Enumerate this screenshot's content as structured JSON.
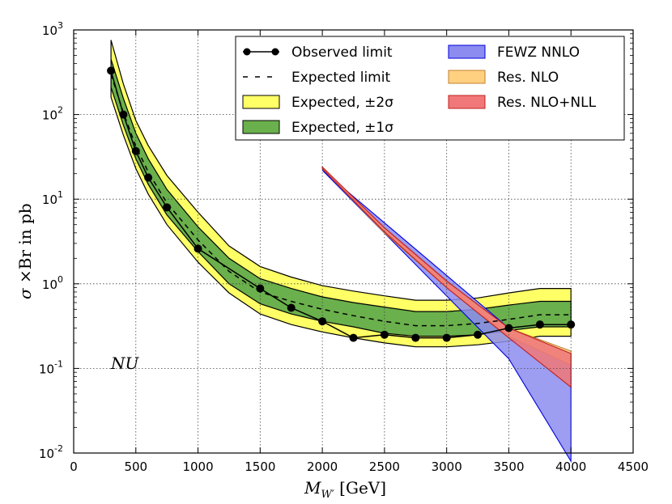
{
  "chart_data": {
    "type": "line",
    "title": "",
    "xlabel": "M_W' [GeV]",
    "ylabel": "σ ×Br in pb",
    "xlim": [
      0,
      4500
    ],
    "ylim": [
      0.01,
      1000
    ],
    "yscale": "log",
    "grid": true,
    "x_ticks": [
      "0",
      "500",
      "1000",
      "1500",
      "2000",
      "2500",
      "3000",
      "3500",
      "4000",
      "4500"
    ],
    "y_ticks": [
      {
        "base": "10",
        "exp": "-2",
        "value": 0.01
      },
      {
        "base": "10",
        "exp": "-1",
        "value": 0.1
      },
      {
        "base": "10",
        "exp": "0",
        "value": 1
      },
      {
        "base": "10",
        "exp": "1",
        "value": 10
      },
      {
        "base": "10",
        "exp": "2",
        "value": 100
      },
      {
        "base": "10",
        "exp": "3",
        "value": 1000
      }
    ],
    "annotation": "NU",
    "legend_position": "top-right",
    "observed": {
      "name": "Observed limit",
      "color": "#000000",
      "x": [
        300,
        400,
        500,
        600,
        750,
        1000,
        1500,
        1750,
        2000,
        2250,
        2500,
        2750,
        3000,
        3250,
        3500,
        3750,
        4000
      ],
      "y": [
        330,
        100,
        37,
        18,
        8,
        2.6,
        0.88,
        0.52,
        0.36,
        0.23,
        0.25,
        0.23,
        0.23,
        0.25,
        0.3,
        0.33,
        0.33
      ]
    },
    "expected": {
      "name": "Expected limit",
      "color": "#000000",
      "x": [
        300,
        400,
        500,
        600,
        750,
        1000,
        1250,
        1500,
        1750,
        2000,
        2250,
        2500,
        2750,
        3000,
        3250,
        3500,
        3750,
        4000
      ],
      "y": [
        300,
        105,
        42,
        21,
        9,
        3.3,
        1.4,
        0.8,
        0.62,
        0.5,
        0.42,
        0.36,
        0.32,
        0.32,
        0.34,
        0.38,
        0.43,
        0.43
      ]
    },
    "band_1sigma": {
      "name": "Expected, ±1σ",
      "color": "#6ab04c",
      "x": [
        300,
        400,
        500,
        600,
        750,
        1000,
        1250,
        1500,
        1750,
        2000,
        2250,
        2500,
        2750,
        3000,
        3250,
        3500,
        3750,
        4000
      ],
      "lower": [
        210,
        75,
        30,
        15,
        6.5,
        2.4,
        1.0,
        0.58,
        0.44,
        0.36,
        0.31,
        0.26,
        0.24,
        0.24,
        0.25,
        0.28,
        0.31,
        0.31
      ],
      "upper": [
        450,
        155,
        60,
        30,
        13,
        4.7,
        2.0,
        1.15,
        0.88,
        0.7,
        0.6,
        0.53,
        0.47,
        0.47,
        0.5,
        0.56,
        0.62,
        0.62
      ]
    },
    "band_2sigma": {
      "name": "Expected, ±2σ",
      "color": "#ffff66",
      "x": [
        300,
        400,
        500,
        600,
        750,
        1000,
        1250,
        1500,
        1750,
        2000,
        2250,
        2500,
        2750,
        3000,
        3250,
        3500,
        3750,
        4000
      ],
      "lower": [
        160,
        57,
        23,
        11.5,
        5,
        1.8,
        0.78,
        0.44,
        0.33,
        0.27,
        0.23,
        0.2,
        0.18,
        0.18,
        0.19,
        0.21,
        0.24,
        0.24
      ],
      "upper": [
        760,
        230,
        85,
        43,
        19,
        7,
        2.8,
        1.6,
        1.2,
        0.95,
        0.82,
        0.72,
        0.64,
        0.64,
        0.68,
        0.78,
        0.88,
        0.88
      ]
    },
    "theory": [
      {
        "name": "FEWZ NNLO",
        "color": "#8c8cf0",
        "line_color": "#0000dd",
        "x": [
          2000,
          3500,
          4000
        ],
        "upper": [
          22,
          0.3,
          0.15
        ],
        "lower": [
          22,
          0.13,
          0.008
        ]
      },
      {
        "name": "Res. NLO",
        "color": "#ffd080",
        "line_color": "#c08030",
        "x": [
          2000,
          2500,
          3000,
          3500,
          4000
        ],
        "upper": [
          24,
          4.5,
          1.05,
          0.3,
          0.16
        ],
        "lower": [
          23,
          4.0,
          0.9,
          0.24,
          0.11
        ]
      },
      {
        "name": "Res. NLO+NLL",
        "color": "#f07878",
        "line_color": "#c02020",
        "x": [
          2000,
          2500,
          3000,
          3500,
          4000
        ],
        "upper": [
          24,
          4.6,
          1.08,
          0.3,
          0.15
        ],
        "lower": [
          23,
          4.1,
          0.9,
          0.23,
          0.06
        ]
      }
    ],
    "legend": {
      "col1": [
        "Observed limit",
        "Expected limit",
        "Expected, ±2σ",
        "Expected, ±1σ"
      ],
      "col2": [
        "FEWZ NNLO",
        "Res. NLO",
        "Res. NLO+NLL"
      ]
    }
  }
}
